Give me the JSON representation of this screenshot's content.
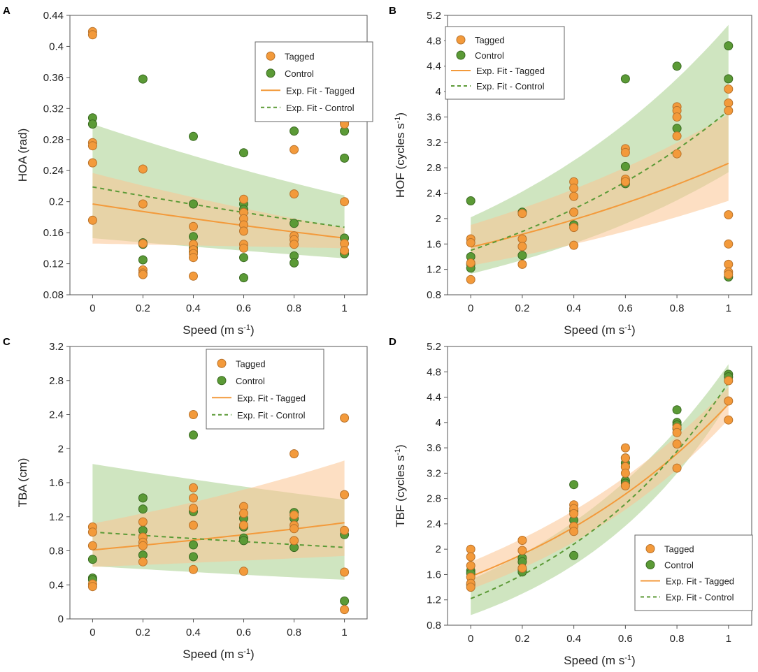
{
  "figure": {
    "legend_labels": [
      "Tagged",
      "Control",
      "Exp. Fit - Tagged",
      "Exp. Fit - Control"
    ],
    "colors": {
      "tagged": "#f39a3b",
      "tagged_edge": "#b8732c",
      "tagged_band": "#fbc592",
      "control": "#5b9a36",
      "control_edge": "#3a6a22",
      "control_band": "#a7cf8d"
    }
  },
  "chart_data": [
    {
      "panel": "A",
      "type": "scatter",
      "xlabel": "Speed (m s",
      "xlabel_sup": "-1",
      "xlabel_end": ")",
      "ylabel": "HOA (rad)",
      "ylabel_sup": "",
      "ylabel_end": "",
      "xlim": [
        -0.09,
        1.09
      ],
      "ylim": [
        0.08,
        0.44
      ],
      "xticks": [
        0,
        0.2,
        0.4,
        0.6,
        0.8,
        1
      ],
      "xtick_labels": [
        "0",
        "0.2",
        "0.4",
        "0.6",
        "0.8",
        "1"
      ],
      "yticks": [
        0.08,
        0.12,
        0.16,
        0.2,
        0.24,
        0.28,
        0.32,
        0.36,
        0.4,
        0.44
      ],
      "ytick_labels": [
        "0.08",
        "0.12",
        "0.16",
        "0.2",
        "0.24",
        "0.28",
        "0.32",
        "0.36",
        "0.4",
        "0.44"
      ],
      "legend_position": "top-right",
      "control_points": [
        [
          0,
          0.308
        ],
        [
          0,
          0.3
        ],
        [
          0.2,
          0.358
        ],
        [
          0.2,
          0.147
        ],
        [
          0.2,
          0.145
        ],
        [
          0.2,
          0.125
        ],
        [
          0.4,
          0.284
        ],
        [
          0.4,
          0.197
        ],
        [
          0.4,
          0.155
        ],
        [
          0.4,
          0.14
        ],
        [
          0.4,
          0.135
        ],
        [
          0.6,
          0.263
        ],
        [
          0.6,
          0.197
        ],
        [
          0.6,
          0.19
        ],
        [
          0.6,
          0.128
        ],
        [
          0.6,
          0.102
        ],
        [
          0.8,
          0.291
        ],
        [
          0.8,
          0.172
        ],
        [
          0.8,
          0.13
        ],
        [
          0.8,
          0.121
        ],
        [
          1,
          0.291
        ],
        [
          1,
          0.256
        ],
        [
          1,
          0.153
        ],
        [
          1,
          0.133
        ]
      ],
      "tagged_points": [
        [
          0,
          0.419
        ],
        [
          0,
          0.415
        ],
        [
          0,
          0.276
        ],
        [
          0,
          0.272
        ],
        [
          0,
          0.25
        ],
        [
          0,
          0.176
        ],
        [
          0.2,
          0.242
        ],
        [
          0.2,
          0.197
        ],
        [
          0.2,
          0.146
        ],
        [
          0.2,
          0.112
        ],
        [
          0.2,
          0.108
        ],
        [
          0.2,
          0.106
        ],
        [
          0.4,
          0.168
        ],
        [
          0.4,
          0.145
        ],
        [
          0.4,
          0.138
        ],
        [
          0.4,
          0.133
        ],
        [
          0.4,
          0.128
        ],
        [
          0.4,
          0.104
        ],
        [
          0.6,
          0.203
        ],
        [
          0.6,
          0.186
        ],
        [
          0.6,
          0.178
        ],
        [
          0.6,
          0.17
        ],
        [
          0.6,
          0.162
        ],
        [
          0.6,
          0.145
        ],
        [
          0.6,
          0.14
        ],
        [
          0.8,
          0.267
        ],
        [
          0.8,
          0.21
        ],
        [
          0.8,
          0.156
        ],
        [
          0.8,
          0.151
        ],
        [
          0.8,
          0.145
        ],
        [
          1,
          0.302
        ],
        [
          1,
          0.3
        ],
        [
          1,
          0.2
        ],
        [
          1,
          0.146
        ],
        [
          1,
          0.137
        ]
      ],
      "fit_tagged": [
        0.197,
        0.153
      ],
      "fit_control": [
        0.219,
        0.167
      ],
      "band_tagged_upper": [
        0.237,
        0.166
      ],
      "band_tagged_lower": [
        0.146,
        0.14
      ],
      "band_control_upper": [
        0.3,
        0.208
      ],
      "band_control_lower": [
        0.153,
        0.127
      ]
    },
    {
      "panel": "B",
      "type": "scatter",
      "xlabel": "Speed (m s",
      "xlabel_sup": "-1",
      "xlabel_end": ")",
      "ylabel": "HOF (cycles s",
      "ylabel_sup": "-1",
      "ylabel_end": ")",
      "xlim": [
        -0.09,
        1.09
      ],
      "ylim": [
        0.8,
        5.2
      ],
      "xticks": [
        0,
        0.2,
        0.4,
        0.6,
        0.8,
        1
      ],
      "xtick_labels": [
        "0",
        "0.2",
        "0.4",
        "0.6",
        "0.8",
        "1"
      ],
      "yticks": [
        0.8,
        1.2,
        1.6,
        2,
        2.4,
        2.8,
        3.2,
        3.6,
        4,
        4.4,
        4.8,
        5.2
      ],
      "ytick_labels": [
        "0.8",
        "1.2",
        "1.6",
        "2",
        "2.4",
        "2.8",
        "3.2",
        "3.6",
        "4",
        "4.4",
        "4.8",
        "5.2"
      ],
      "legend_position": "top-left",
      "control_points": [
        [
          0,
          2.28
        ],
        [
          0,
          1.4
        ],
        [
          0,
          1.28
        ],
        [
          0,
          1.22
        ],
        [
          0.2,
          2.1
        ],
        [
          0.2,
          1.42
        ],
        [
          0.4,
          2.1
        ],
        [
          0.4,
          1.9
        ],
        [
          0.6,
          4.2
        ],
        [
          0.6,
          2.82
        ],
        [
          0.6,
          2.6
        ],
        [
          0.6,
          2.55
        ],
        [
          0.8,
          4.4
        ],
        [
          0.8,
          3.42
        ],
        [
          1,
          4.72
        ],
        [
          1,
          4.2
        ],
        [
          1,
          1.08
        ]
      ],
      "tagged_points": [
        [
          0,
          1.68
        ],
        [
          0,
          1.62
        ],
        [
          0,
          1.3
        ],
        [
          0,
          1.04
        ],
        [
          0.2,
          2.08
        ],
        [
          0.2,
          1.68
        ],
        [
          0.2,
          1.56
        ],
        [
          0.2,
          1.28
        ],
        [
          0.4,
          2.58
        ],
        [
          0.4,
          2.48
        ],
        [
          0.4,
          2.35
        ],
        [
          0.4,
          2.1
        ],
        [
          0.4,
          1.86
        ],
        [
          0.4,
          1.58
        ],
        [
          0.6,
          3.1
        ],
        [
          0.6,
          3.04
        ],
        [
          0.6,
          2.62
        ],
        [
          0.6,
          2.58
        ],
        [
          0.8,
          3.76
        ],
        [
          0.8,
          3.7
        ],
        [
          0.8,
          3.6
        ],
        [
          0.8,
          3.3
        ],
        [
          0.8,
          3.02
        ],
        [
          1,
          4.04
        ],
        [
          1,
          3.82
        ],
        [
          1,
          3.7
        ],
        [
          1,
          2.06
        ],
        [
          1,
          1.6
        ],
        [
          1,
          1.28
        ],
        [
          1,
          1.16
        ],
        [
          1,
          1.12
        ]
      ],
      "fit_tagged": [
        1.55,
        2.87
      ],
      "fit_control": [
        1.5,
        3.7
      ],
      "band_tagged_upper": [
        1.9,
        3.64
      ],
      "band_tagged_lower": [
        1.26,
        2.28
      ],
      "band_control_upper": [
        2.02,
        5.05
      ],
      "band_control_lower": [
        1.13,
        2.73
      ]
    },
    {
      "panel": "C",
      "type": "scatter",
      "xlabel": "Speed (m s",
      "xlabel_sup": "-1",
      "xlabel_end": ")",
      "ylabel": "TBA (cm)",
      "ylabel_sup": "",
      "ylabel_end": "",
      "xlim": [
        -0.09,
        1.09
      ],
      "ylim": [
        0,
        3.2
      ],
      "xticks": [
        0,
        0.2,
        0.4,
        0.6,
        0.8,
        1
      ],
      "xtick_labels": [
        "0",
        "0.2",
        "0.4",
        "0.6",
        "0.8",
        "1"
      ],
      "yticks": [
        0,
        0.4,
        0.8,
        1.2,
        1.6,
        2,
        2.4,
        2.8,
        3.2
      ],
      "ytick_labels": [
        "0",
        "0.4",
        "0.8",
        "1.2",
        "1.6",
        "2",
        "2.4",
        "2.8",
        "3.2"
      ],
      "legend_position": "top-center",
      "control_points": [
        [
          0,
          0.7
        ],
        [
          0,
          0.48
        ],
        [
          0,
          0.46
        ],
        [
          0.2,
          1.42
        ],
        [
          0.2,
          1.29
        ],
        [
          0.2,
          1.04
        ],
        [
          0.2,
          0.75
        ],
        [
          0.4,
          2.16
        ],
        [
          0.4,
          1.26
        ],
        [
          0.4,
          0.87
        ],
        [
          0.4,
          0.73
        ],
        [
          0.6,
          1.18
        ],
        [
          0.6,
          1.08
        ],
        [
          0.6,
          0.95
        ],
        [
          0.6,
          0.92
        ],
        [
          0.8,
          1.25
        ],
        [
          0.8,
          1.18
        ],
        [
          0.8,
          0.84
        ],
        [
          1,
          0.99
        ],
        [
          1,
          0.21
        ]
      ],
      "tagged_points": [
        [
          0,
          1.08
        ],
        [
          0,
          1.02
        ],
        [
          0,
          0.86
        ],
        [
          0,
          0.41
        ],
        [
          0,
          0.38
        ],
        [
          0.2,
          1.14
        ],
        [
          0.2,
          0.96
        ],
        [
          0.2,
          0.9
        ],
        [
          0.2,
          0.86
        ],
        [
          0.2,
          0.67
        ],
        [
          0.4,
          2.4
        ],
        [
          0.4,
          1.54
        ],
        [
          0.4,
          1.42
        ],
        [
          0.4,
          1.3
        ],
        [
          0.4,
          1.1
        ],
        [
          0.4,
          0.58
        ],
        [
          0.6,
          1.32
        ],
        [
          0.6,
          1.24
        ],
        [
          0.6,
          1.1
        ],
        [
          0.6,
          0.56
        ],
        [
          0.8,
          1.94
        ],
        [
          0.8,
          1.22
        ],
        [
          0.8,
          1.1
        ],
        [
          0.8,
          1.06
        ],
        [
          0.8,
          0.92
        ],
        [
          1,
          2.36
        ],
        [
          1,
          1.46
        ],
        [
          1,
          1.04
        ],
        [
          1,
          0.55
        ],
        [
          1,
          0.11
        ]
      ],
      "fit_tagged": [
        0.81,
        1.13
      ],
      "fit_control": [
        1.02,
        0.84
      ],
      "band_tagged_upper": [
        1.12,
        1.86
      ],
      "band_tagged_lower": [
        0.61,
        0.74
      ],
      "band_control_upper": [
        1.82,
        1.4
      ],
      "band_control_lower": [
        0.62,
        0.46
      ]
    },
    {
      "panel": "D",
      "type": "scatter",
      "xlabel": "Speed (m s",
      "xlabel_sup": "-1",
      "xlabel_end": ")",
      "ylabel": "TBF (cycles s",
      "ylabel_sup": "-1",
      "ylabel_end": ")",
      "xlim": [
        -0.09,
        1.09
      ],
      "ylim": [
        0.8,
        5.2
      ],
      "xticks": [
        0,
        0.2,
        0.4,
        0.6,
        0.8,
        1
      ],
      "xtick_labels": [
        "0",
        "0.2",
        "0.4",
        "0.6",
        "0.8",
        "1"
      ],
      "yticks": [
        0.8,
        1.2,
        1.6,
        2,
        2.4,
        2.8,
        3.2,
        3.6,
        4,
        4.4,
        4.8,
        5.2
      ],
      "ytick_labels": [
        "0.8",
        "1.2",
        "1.6",
        "2",
        "2.4",
        "2.8",
        "3.2",
        "3.6",
        "4",
        "4.4",
        "4.8",
        "5.2"
      ],
      "legend_position": "bottom-right",
      "control_points": [
        [
          0,
          1.66
        ],
        [
          0,
          1.62
        ],
        [
          0,
          1.44
        ],
        [
          0.2,
          1.86
        ],
        [
          0.2,
          1.8
        ],
        [
          0.2,
          1.68
        ],
        [
          0.2,
          1.64
        ],
        [
          0.4,
          3.02
        ],
        [
          0.4,
          2.6
        ],
        [
          0.4,
          2.46
        ],
        [
          0.4,
          1.9
        ],
        [
          0.6,
          3.44
        ],
        [
          0.6,
          3.36
        ],
        [
          0.6,
          3.3
        ],
        [
          0.6,
          3.08
        ],
        [
          0.6,
          3.04
        ],
        [
          0.8,
          4.2
        ],
        [
          0.8,
          4.0
        ],
        [
          0.8,
          3.96
        ],
        [
          0.8,
          3.9
        ],
        [
          1,
          4.76
        ],
        [
          1,
          4.72
        ]
      ],
      "tagged_points": [
        [
          0,
          2.0
        ],
        [
          0,
          1.88
        ],
        [
          0,
          1.74
        ],
        [
          0,
          1.56
        ],
        [
          0,
          1.46
        ],
        [
          0,
          1.4
        ],
        [
          0.2,
          2.14
        ],
        [
          0.2,
          1.98
        ],
        [
          0.2,
          1.7
        ],
        [
          0.4,
          2.7
        ],
        [
          0.4,
          2.64
        ],
        [
          0.4,
          2.56
        ],
        [
          0.4,
          2.36
        ],
        [
          0.4,
          2.28
        ],
        [
          0.6,
          3.6
        ],
        [
          0.6,
          3.44
        ],
        [
          0.6,
          3.3
        ],
        [
          0.6,
          3.2
        ],
        [
          0.6,
          3.0
        ],
        [
          0.8,
          3.92
        ],
        [
          0.8,
          3.84
        ],
        [
          0.8,
          3.66
        ],
        [
          0.8,
          3.28
        ],
        [
          1,
          4.66
        ],
        [
          1,
          4.34
        ],
        [
          1,
          4.04
        ]
      ],
      "fit_tagged": [
        1.57,
        4.29
      ],
      "fit_control": [
        1.22,
        4.63
      ],
      "band_tagged_upper": [
        1.8,
        4.56
      ],
      "band_tagged_lower": [
        1.37,
        4.05
      ],
      "band_control_upper": [
        1.52,
        4.92
      ],
      "band_control_lower": [
        0.96,
        4.32
      ]
    }
  ]
}
